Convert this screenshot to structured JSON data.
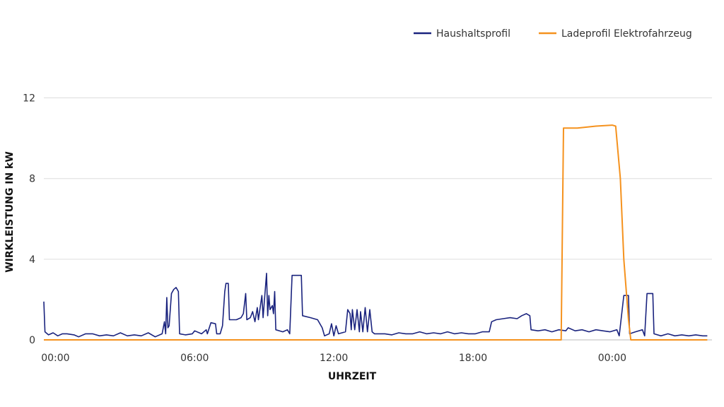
{
  "chart_data": {
    "type": "line",
    "xlabel": "UHRZEIT",
    "ylabel": "WIRKLEISTUNG IN kW",
    "ylim": [
      0,
      13
    ],
    "yticks": [
      0,
      4,
      8,
      12
    ],
    "xlim": [
      -0.5,
      28.3
    ],
    "xticks": [
      {
        "value": 0,
        "label": "00:00"
      },
      {
        "value": 6,
        "label": "06:00"
      },
      {
        "value": 12,
        "label": "12:00"
      },
      {
        "value": 18,
        "label": "18:00"
      },
      {
        "value": 24,
        "label": "00:00"
      }
    ],
    "grid": true,
    "legend_position": "top-right",
    "series": [
      {
        "name": "Haushaltsprofil",
        "color": "#1a237e",
        "points": [
          [
            -0.5,
            1.9
          ],
          [
            -0.45,
            0.4
          ],
          [
            -0.3,
            0.25
          ],
          [
            -0.1,
            0.35
          ],
          [
            0.1,
            0.2
          ],
          [
            0.3,
            0.3
          ],
          [
            0.5,
            0.3
          ],
          [
            0.8,
            0.25
          ],
          [
            1.0,
            0.15
          ],
          [
            1.3,
            0.3
          ],
          [
            1.6,
            0.3
          ],
          [
            1.9,
            0.2
          ],
          [
            2.2,
            0.25
          ],
          [
            2.5,
            0.2
          ],
          [
            2.8,
            0.35
          ],
          [
            3.1,
            0.2
          ],
          [
            3.4,
            0.25
          ],
          [
            3.7,
            0.2
          ],
          [
            4.0,
            0.35
          ],
          [
            4.3,
            0.15
          ],
          [
            4.6,
            0.3
          ],
          [
            4.7,
            0.9
          ],
          [
            4.75,
            0.3
          ],
          [
            4.8,
            2.1
          ],
          [
            4.85,
            0.6
          ],
          [
            4.9,
            0.7
          ],
          [
            5.0,
            2.3
          ],
          [
            5.1,
            2.5
          ],
          [
            5.2,
            2.6
          ],
          [
            5.3,
            2.4
          ],
          [
            5.35,
            0.3
          ],
          [
            5.6,
            0.25
          ],
          [
            5.9,
            0.3
          ],
          [
            6.0,
            0.45
          ],
          [
            6.3,
            0.3
          ],
          [
            6.5,
            0.5
          ],
          [
            6.55,
            0.3
          ],
          [
            6.7,
            0.85
          ],
          [
            6.9,
            0.8
          ],
          [
            6.95,
            0.3
          ],
          [
            7.1,
            0.3
          ],
          [
            7.2,
            0.7
          ],
          [
            7.3,
            2.4
          ],
          [
            7.35,
            2.8
          ],
          [
            7.45,
            2.8
          ],
          [
            7.5,
            1.0
          ],
          [
            7.8,
            1.0
          ],
          [
            8.0,
            1.1
          ],
          [
            8.1,
            1.3
          ],
          [
            8.2,
            2.3
          ],
          [
            8.25,
            1.0
          ],
          [
            8.4,
            1.1
          ],
          [
            8.5,
            1.4
          ],
          [
            8.6,
            0.9
          ],
          [
            8.7,
            1.6
          ],
          [
            8.75,
            1.0
          ],
          [
            8.9,
            2.2
          ],
          [
            8.95,
            1.1
          ],
          [
            9.1,
            3.3
          ],
          [
            9.15,
            1.2
          ],
          [
            9.2,
            2.2
          ],
          [
            9.25,
            1.5
          ],
          [
            9.35,
            1.7
          ],
          [
            9.4,
            1.3
          ],
          [
            9.45,
            2.4
          ],
          [
            9.5,
            0.5
          ],
          [
            9.8,
            0.4
          ],
          [
            10.0,
            0.5
          ],
          [
            10.1,
            0.3
          ],
          [
            10.2,
            3.2
          ],
          [
            10.6,
            3.2
          ],
          [
            10.65,
            1.2
          ],
          [
            11.0,
            1.1
          ],
          [
            11.3,
            1.0
          ],
          [
            11.5,
            0.6
          ],
          [
            11.6,
            0.2
          ],
          [
            11.8,
            0.3
          ],
          [
            11.9,
            0.8
          ],
          [
            12.0,
            0.2
          ],
          [
            12.1,
            0.7
          ],
          [
            12.2,
            0.3
          ],
          [
            12.5,
            0.4
          ],
          [
            12.6,
            1.5
          ],
          [
            12.7,
            1.3
          ],
          [
            12.75,
            0.5
          ],
          [
            12.8,
            1.5
          ],
          [
            12.9,
            0.5
          ],
          [
            13.0,
            1.5
          ],
          [
            13.1,
            0.4
          ],
          [
            13.15,
            1.4
          ],
          [
            13.25,
            0.4
          ],
          [
            13.35,
            1.6
          ],
          [
            13.45,
            0.4
          ],
          [
            13.55,
            1.5
          ],
          [
            13.65,
            0.4
          ],
          [
            13.75,
            0.3
          ],
          [
            14.2,
            0.3
          ],
          [
            14.5,
            0.25
          ],
          [
            14.8,
            0.35
          ],
          [
            15.1,
            0.3
          ],
          [
            15.4,
            0.3
          ],
          [
            15.7,
            0.4
          ],
          [
            16.0,
            0.3
          ],
          [
            16.3,
            0.35
          ],
          [
            16.6,
            0.3
          ],
          [
            16.9,
            0.4
          ],
          [
            17.2,
            0.3
          ],
          [
            17.5,
            0.35
          ],
          [
            17.8,
            0.3
          ],
          [
            18.1,
            0.3
          ],
          [
            18.4,
            0.4
          ],
          [
            18.7,
            0.4
          ],
          [
            18.8,
            0.9
          ],
          [
            19.0,
            1.0
          ],
          [
            19.3,
            1.05
          ],
          [
            19.6,
            1.1
          ],
          [
            19.9,
            1.05
          ],
          [
            20.1,
            1.2
          ],
          [
            20.3,
            1.3
          ],
          [
            20.45,
            1.2
          ],
          [
            20.5,
            0.5
          ],
          [
            20.8,
            0.45
          ],
          [
            21.1,
            0.5
          ],
          [
            21.4,
            0.4
          ],
          [
            21.7,
            0.5
          ],
          [
            22.0,
            0.45
          ],
          [
            22.1,
            0.6
          ],
          [
            22.4,
            0.45
          ],
          [
            22.7,
            0.5
          ],
          [
            23.0,
            0.4
          ],
          [
            23.3,
            0.5
          ],
          [
            23.6,
            0.45
          ],
          [
            23.9,
            0.4
          ],
          [
            24.2,
            0.5
          ],
          [
            24.3,
            0.2
          ],
          [
            24.5,
            2.2
          ],
          [
            24.7,
            2.2
          ],
          [
            24.75,
            0.3
          ],
          [
            25.0,
            0.4
          ],
          [
            25.3,
            0.5
          ],
          [
            25.4,
            0.2
          ],
          [
            25.5,
            2.3
          ],
          [
            25.75,
            2.3
          ],
          [
            25.8,
            0.3
          ],
          [
            26.1,
            0.2
          ],
          [
            26.4,
            0.3
          ],
          [
            26.7,
            0.2
          ],
          [
            27.0,
            0.25
          ],
          [
            27.3,
            0.2
          ],
          [
            27.6,
            0.25
          ],
          [
            27.9,
            0.2
          ],
          [
            28.1,
            0.2
          ]
        ]
      },
      {
        "name": "Ladeprofil Elektrofahrzeug",
        "color": "#f5921e",
        "points": [
          [
            -0.5,
            0
          ],
          [
            21.8,
            0
          ],
          [
            21.9,
            10.5
          ],
          [
            22.5,
            10.5
          ],
          [
            23.3,
            10.6
          ],
          [
            24.0,
            10.65
          ],
          [
            24.15,
            10.6
          ],
          [
            24.35,
            8.0
          ],
          [
            24.5,
            4.0
          ],
          [
            24.7,
            1.0
          ],
          [
            24.8,
            0
          ],
          [
            28.1,
            0
          ]
        ]
      }
    ]
  }
}
